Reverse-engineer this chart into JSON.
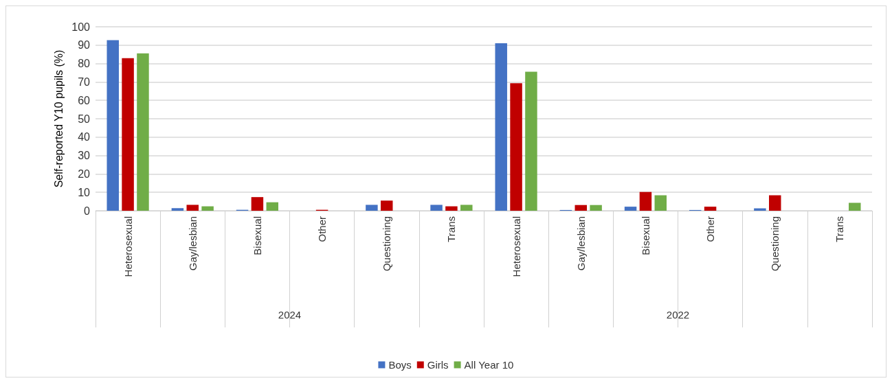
{
  "chart_data": {
    "type": "bar",
    "ylabel": "Self-reported Y10 pupils (%)",
    "categories": [
      "Heterosexual",
      "Gay/lesbian",
      "Bisexual",
      "Other",
      "Questioning",
      "Trans",
      "Heterosexual",
      "Gay/lesbian",
      "Bisexual",
      "Other",
      "Questioning",
      "Trans"
    ],
    "annotations": [
      "2024",
      "2022"
    ],
    "series": [
      {
        "name": "Boys",
        "color": "#4472c4",
        "values": [
          92.7,
          1.4,
          0.5,
          null,
          3.2,
          3.2,
          91,
          0.4,
          2.2,
          0.4,
          1.3,
          null
        ]
      },
      {
        "name": "Girls",
        "color": "#c00000",
        "values": [
          82.9,
          3.2,
          7.4,
          0.5,
          5.5,
          2.4,
          69.3,
          3.1,
          10.2,
          2.2,
          8.4,
          null
        ]
      },
      {
        "name": "All Year 10",
        "color": "#70ad47",
        "values": [
          85.5,
          2.4,
          4.6,
          null,
          null,
          3.2,
          75.6,
          3.1,
          8.4,
          null,
          null,
          4.3
        ]
      }
    ],
    "ylim": [
      0,
      100
    ],
    "yticks": [
      0,
      10,
      20,
      30,
      40,
      50,
      60,
      70,
      80,
      90,
      100
    ],
    "grid": "y",
    "legend": "bottom"
  }
}
